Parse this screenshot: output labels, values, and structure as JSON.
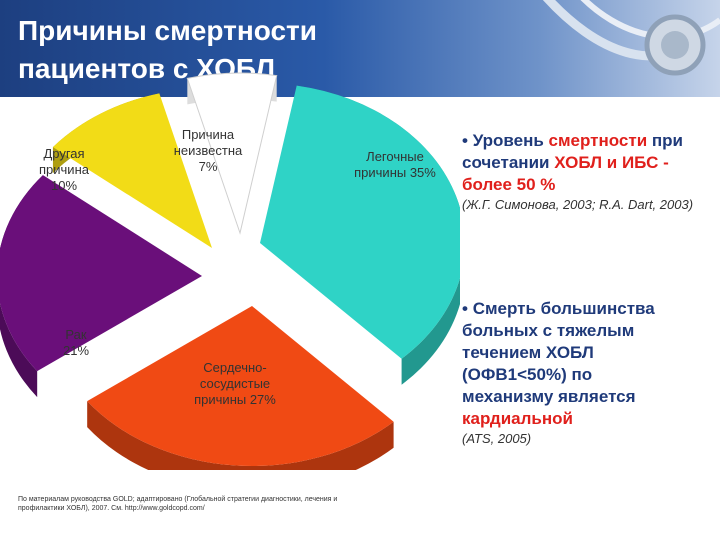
{
  "title": "Причины смертности пациентов с ХОБЛ",
  "chart_data": {
    "type": "pie",
    "slices": [
      {
        "label": "Легочные причины 35%",
        "value": 35,
        "color": "#2fd3c6"
      },
      {
        "label": "Сердечно-сосудистые причины 27%",
        "value": 27,
        "color": "#f04a14"
      },
      {
        "label": "Рак 21%",
        "value": 21,
        "color": "#6a0f7a"
      },
      {
        "label": "Другая причина 10%",
        "value": 10,
        "color": "#f2dc17"
      },
      {
        "label": "Причина неизвестна 7%",
        "value": 7,
        "color": "#ffffff"
      }
    ]
  },
  "labels": {
    "other": "Другая причина 10%",
    "unknown": "Причина неизвестна 7%",
    "pulmonary": "Легочные причины 35%",
    "cancer": "Рак 21%",
    "cardio": "Сердечно-сосудистые причины 27%"
  },
  "bullet1": {
    "bullet": "•",
    "t1": "Уровень",
    "t2": "смертности",
    "t3": "при сочетании",
    "t4": "ХОБЛ и ИБС - более 50 %",
    "cite": "(Ж.Г. Симонова, 2003; R.A. Dart, 2003)"
  },
  "bullet2": {
    "bullet": "•",
    "t1": "Смерть большинства больных с тяжелым течением ХОБЛ (ОФВ1<50%) по механизму является",
    "t2": "кардиальной",
    "cite": "(ATS, 2005)"
  },
  "footnote": "По материалам руководства GOLD; адаптировано (Глобальной стратегии диагностики, лечения и профилактики ХОБЛ), 2007. См. http://www.goldcopd.com/"
}
